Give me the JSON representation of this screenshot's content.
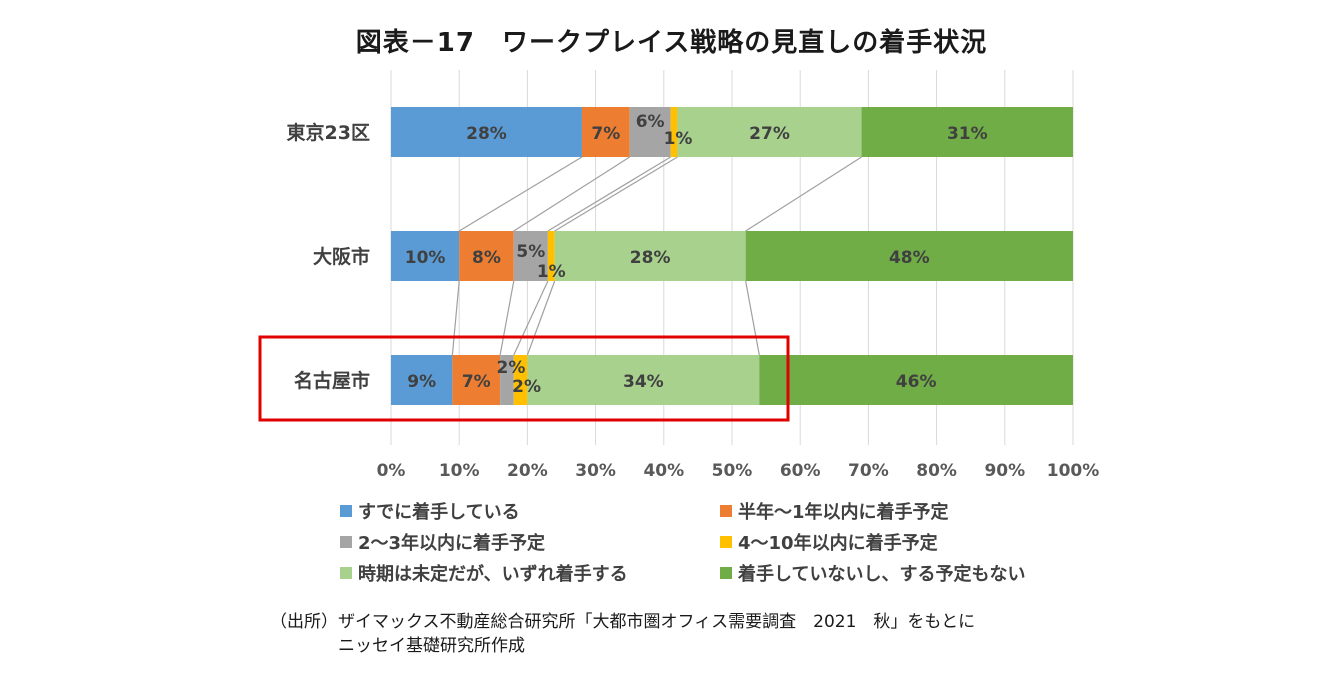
{
  "title": "図表－17　ワークプレイス戦略の見直しの着手状況",
  "colors": {
    "s1": "#5B9BD5",
    "s2": "#ED7D31",
    "s3": "#A5A5A5",
    "s4": "#FFC000",
    "s5": "#A9D18E",
    "s6": "#70AD47",
    "highlight": "#E00000",
    "grid": "#D9D9D9",
    "connector": "#A0A0A0"
  },
  "chart_data": {
    "type": "bar",
    "orientation": "horizontal",
    "stacked": true,
    "categories": [
      "東京23区",
      "大阪市",
      "名古屋市"
    ],
    "series": [
      {
        "name": "すでに着手している",
        "values": [
          28,
          10,
          9
        ]
      },
      {
        "name": "半年～1年以内に着手予定",
        "values": [
          7,
          8,
          7
        ]
      },
      {
        "name": "2～3年以内に着手予定",
        "values": [
          6,
          5,
          2
        ]
      },
      {
        "name": "4～10年以内に着手予定",
        "values": [
          1,
          1,
          2
        ]
      },
      {
        "name": "時期は未定だが、いずれ着手する",
        "values": [
          27,
          28,
          34
        ]
      },
      {
        "name": "着手していないし、する予定もない",
        "values": [
          31,
          48,
          46
        ]
      }
    ],
    "value_suffix": "%",
    "xlim": [
      0,
      100
    ],
    "xticks": [
      "0%",
      "10%",
      "20%",
      "30%",
      "40%",
      "50%",
      "60%",
      "70%",
      "80%",
      "90%",
      "100%"
    ],
    "grid": true,
    "series_lines": true,
    "legend_position": "bottom",
    "highlighted_category": "名古屋市"
  },
  "source": {
    "line1": "（出所）ザイマックス不動産総合研究所「大都市圏オフィス需要調査　2021　秋」をもとに",
    "line2": "ニッセイ基礎研究所作成"
  }
}
